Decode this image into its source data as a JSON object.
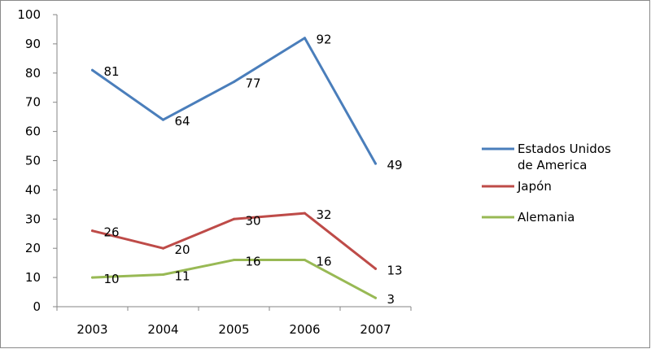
{
  "chart_data": {
    "type": "line",
    "x": [
      2003,
      2004,
      2005,
      2006,
      2007
    ],
    "categories": [
      "2003",
      "2004",
      "2005",
      "2006",
      "2007"
    ],
    "ylim": [
      0,
      100
    ],
    "yticks": [
      0,
      10,
      20,
      30,
      40,
      50,
      60,
      70,
      80,
      90,
      100
    ],
    "ytick_labels": [
      "0",
      "10",
      "20",
      "30",
      "40",
      "50",
      "60",
      "70",
      "80",
      "90",
      "100"
    ],
    "grid": false,
    "legend": "right",
    "series": [
      {
        "name": "Estados Unidos de America",
        "legend_lines": [
          "Estados Unidos",
          "de America"
        ],
        "color": "#4a7ebb",
        "values": [
          81,
          64,
          77,
          92,
          49
        ],
        "labels": [
          "81",
          "64",
          "77",
          "92",
          "49"
        ]
      },
      {
        "name": "Japón",
        "legend_lines": [
          "Japón"
        ],
        "color": "#be4b48",
        "values": [
          26,
          20,
          30,
          32,
          13
        ],
        "labels": [
          "26",
          "20",
          "30",
          "32",
          "13"
        ]
      },
      {
        "name": "Alemania",
        "legend_lines": [
          "Alemania"
        ],
        "color": "#98b954",
        "values": [
          10,
          11,
          16,
          16,
          3
        ],
        "labels": [
          "10",
          "11",
          "16",
          "16",
          "3"
        ]
      }
    ]
  }
}
